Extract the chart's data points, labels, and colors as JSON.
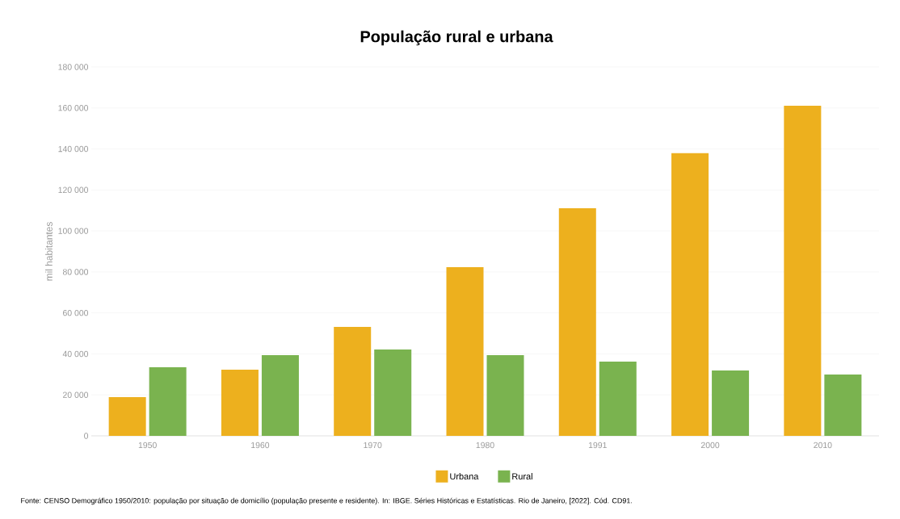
{
  "chart_data": {
    "type": "bar",
    "title": "População rural e urbana",
    "ylabel": "mil habitantes",
    "categories": [
      "1950",
      "1960",
      "1970",
      "1980",
      "1991",
      "2000",
      "2010"
    ],
    "series": [
      {
        "name": "Urbana",
        "color": "#edb01e",
        "values": [
          18900,
          32300,
          53200,
          82300,
          111100,
          137900,
          161100
        ]
      },
      {
        "name": "Rural",
        "color": "#7ab34f",
        "values": [
          33500,
          39400,
          42100,
          39400,
          36200,
          31900,
          29900
        ]
      }
    ],
    "ylim": [
      0,
      180000
    ],
    "yticks": [
      0,
      {
        "value": 20000,
        "label": "20 000"
      },
      {
        "value": 40000,
        "label": "40 000"
      },
      {
        "value": 60000,
        "label": "60 000"
      },
      {
        "value": 80000,
        "label": "80 000"
      },
      {
        "value": 100000,
        "label": "100 000"
      },
      {
        "value": 120000,
        "label": "120 000"
      },
      {
        "value": 140000,
        "label": "140 000"
      },
      {
        "value": 160000,
        "label": "160 000"
      },
      {
        "value": 180000,
        "label": "180 000"
      }
    ],
    "grid": "y",
    "legend": "bottom",
    "annotations": [
      "Fonte: CENSO Demográfico 1950/2010: população por situação de domicílio (população presente e residente). In: IBGE. Séries Históricas e Estatísticas. Rio de Janeiro, [2022]. Cód. CD91."
    ]
  }
}
